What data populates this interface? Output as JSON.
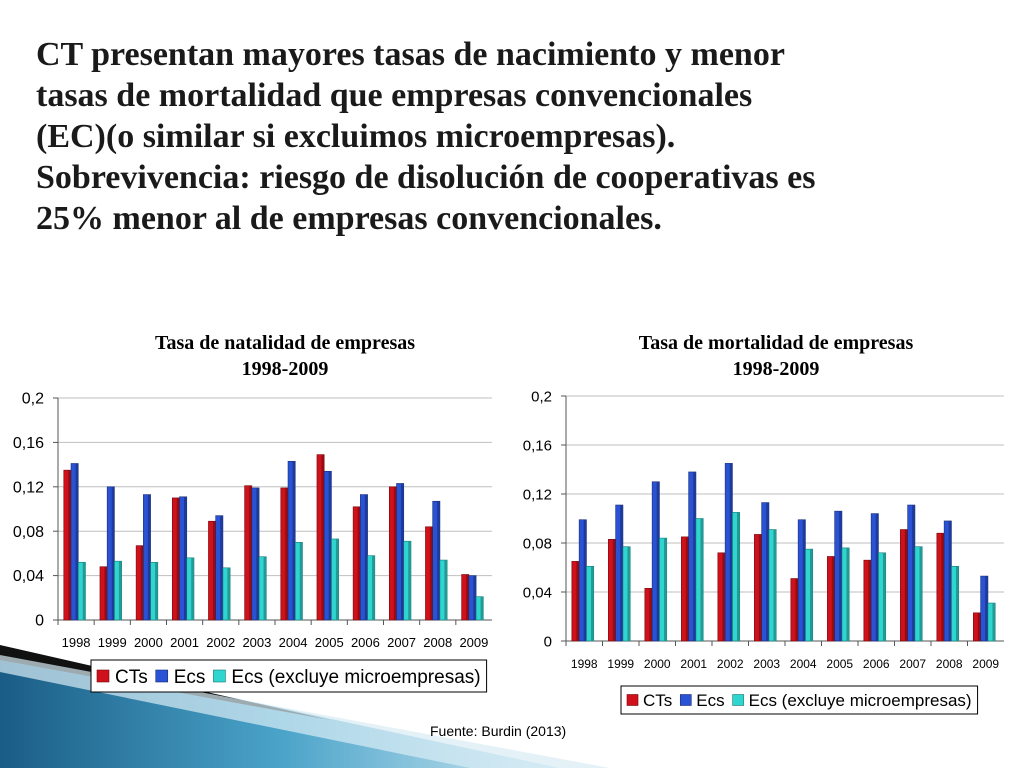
{
  "slide": {
    "title_lines": [
      "CT presentan mayores tasas de nacimiento y menor",
      "tasas de mortalidad que empresas convencionales",
      "(EC)(o similar si excluimos microempresas).",
      "Sobrevivencia: riesgo de disolución de cooperativas es",
      "25% menor al de empresas convencionales."
    ],
    "source": "Fuente: Burdin (2013)"
  },
  "colors": {
    "CTs": "#d0101a",
    "Ecs": "#2a52d4",
    "Ecs_excl": "#2fd6d0"
  },
  "chart_data": [
    {
      "type": "bar",
      "title_lines": [
        "Tasa de natalidad de empresas",
        "1998-2009"
      ],
      "categories": [
        "1998",
        "1999",
        "2000",
        "2001",
        "2002",
        "2003",
        "2004",
        "2005",
        "2006",
        "2007",
        "2008",
        "2009"
      ],
      "series": [
        {
          "name": "CTs",
          "values": [
            0.135,
            0.048,
            0.067,
            0.11,
            0.089,
            0.121,
            0.119,
            0.149,
            0.102,
            0.12,
            0.084,
            0.041
          ]
        },
        {
          "name": "Ecs",
          "values": [
            0.141,
            0.12,
            0.113,
            0.111,
            0.094,
            0.119,
            0.143,
            0.134,
            0.113,
            0.123,
            0.107,
            0.04
          ]
        },
        {
          "name": "Ecs (excluye microempresas)",
          "values": [
            0.052,
            0.053,
            0.052,
            0.056,
            0.047,
            0.057,
            0.07,
            0.073,
            0.058,
            0.071,
            0.054,
            0.021
          ]
        }
      ],
      "ylim": [
        0,
        0.2
      ],
      "yticks": [
        "0",
        "0,04",
        "0,08",
        "0,12",
        "0,16",
        "0,2"
      ],
      "legend": "bottom",
      "grid": true
    },
    {
      "type": "bar",
      "title_lines": [
        "Tasa de mortalidad de empresas",
        "1998-2009"
      ],
      "categories": [
        "1998",
        "1999",
        "2000",
        "2001",
        "2002",
        "2003",
        "2004",
        "2005",
        "2006",
        "2007",
        "2008",
        "2009"
      ],
      "series": [
        {
          "name": "CTs",
          "values": [
            0.065,
            0.083,
            0.043,
            0.085,
            0.072,
            0.087,
            0.051,
            0.069,
            0.066,
            0.091,
            0.088,
            0.023
          ]
        },
        {
          "name": "Ecs",
          "values": [
            0.099,
            0.111,
            0.13,
            0.138,
            0.145,
            0.113,
            0.099,
            0.106,
            0.104,
            0.111,
            0.098,
            0.053
          ]
        },
        {
          "name": "Ecs (excluye microempresas)",
          "values": [
            0.061,
            0.077,
            0.084,
            0.1,
            0.105,
            0.091,
            0.075,
            0.076,
            0.072,
            0.077,
            0.061,
            0.031
          ]
        }
      ],
      "ylim": [
        0,
        0.2
      ],
      "yticks": [
        "0",
        "0,04",
        "0,08",
        "0,12",
        "0,16",
        "0,2"
      ],
      "legend": "bottom",
      "grid": true
    }
  ]
}
